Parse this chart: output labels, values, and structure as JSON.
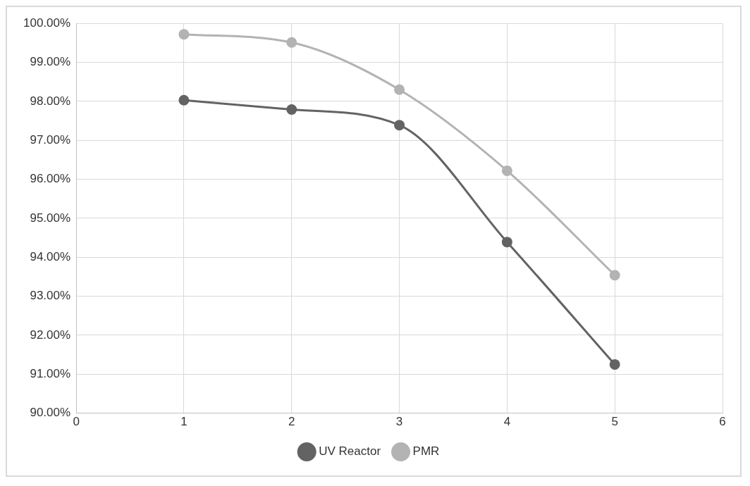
{
  "chart_data": {
    "type": "line",
    "x": [
      1,
      2,
      3,
      4,
      5
    ],
    "series": [
      {
        "name": "UV Reactor",
        "color": "#636363",
        "values": [
          98.03,
          97.79,
          97.39,
          94.39,
          91.25
        ]
      },
      {
        "name": "PMR",
        "color": "#b3b3b3",
        "values": [
          99.72,
          99.51,
          98.3,
          96.22,
          93.54
        ]
      }
    ],
    "xlim": [
      0,
      6
    ],
    "xticks": [
      0,
      1,
      2,
      3,
      4,
      5,
      6
    ],
    "ylim": [
      90,
      100
    ],
    "yticks": [
      {
        "value": 90,
        "label": "90.00%"
      },
      {
        "value": 91,
        "label": "91.00%"
      },
      {
        "value": 92,
        "label": "92.00%"
      },
      {
        "value": 93,
        "label": "93.00%"
      },
      {
        "value": 94,
        "label": "94.00%"
      },
      {
        "value": 95,
        "label": "95.00%"
      },
      {
        "value": 96,
        "label": "96.00%"
      },
      {
        "value": 97,
        "label": "97.00%"
      },
      {
        "value": 98,
        "label": "98.00%"
      },
      {
        "value": 99,
        "label": "99.00%"
      },
      {
        "value": 100,
        "label": "100.00%"
      }
    ],
    "grid": true,
    "legend": "bottom",
    "marker": "circle",
    "line_style": "solid"
  }
}
